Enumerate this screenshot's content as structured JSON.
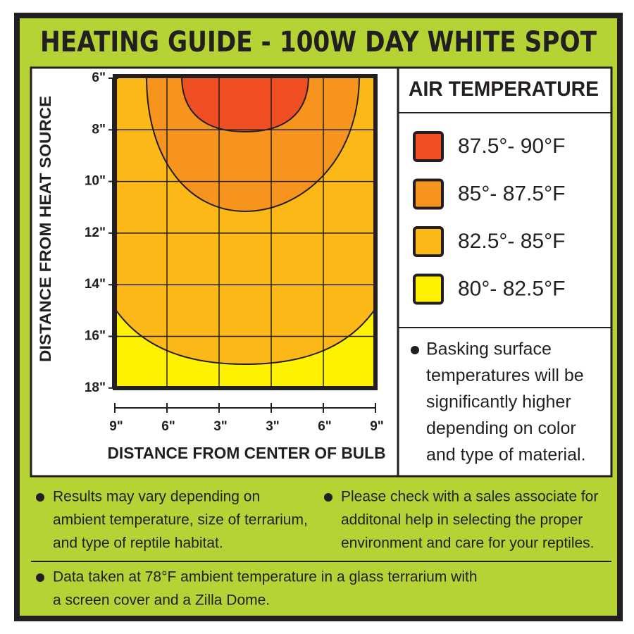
{
  "title": "HEATING GUIDE - 100W DAY WHITE SPOT",
  "plot": {
    "y_axis_label": "DISTANCE FROM HEAT SOURCE",
    "y_ticks": [
      "6\"",
      "8\"",
      "10\"",
      "12\"",
      "14\"",
      "16\"",
      "18\""
    ],
    "x_axis_label": "DISTANCE FROM CENTER OF BULB",
    "x_ticks": [
      "9\"",
      "6\"",
      "3\"",
      "3\"",
      "6\"",
      "9\""
    ]
  },
  "legend": {
    "title": "AIR TEMPERATURE",
    "items": [
      {
        "label": "87.5°- 90°F",
        "color": "#f04e23"
      },
      {
        "label": "85°- 87.5°F",
        "color": "#f7941d"
      },
      {
        "label": "82.5°- 85°F",
        "color": "#fbb817"
      },
      {
        "label": "80°- 82.5°F",
        "color": "#fff200"
      }
    ]
  },
  "basking_note": [
    "Basking surface",
    "temperatures will be",
    "significantly higher",
    "depending on color",
    "and type of material."
  ],
  "notes": [
    [
      "Results may vary depending on",
      "ambient temperature, size of terrarium,",
      "and type of reptile habitat."
    ],
    [
      "Please check with a sales associate for",
      "additonal help in selecting the proper",
      "environment and care for your reptiles."
    ],
    [
      "Data taken at 78°F ambient temperature in a glass terrarium with",
      "a screen cover and a Zilla Dome."
    ]
  ]
}
